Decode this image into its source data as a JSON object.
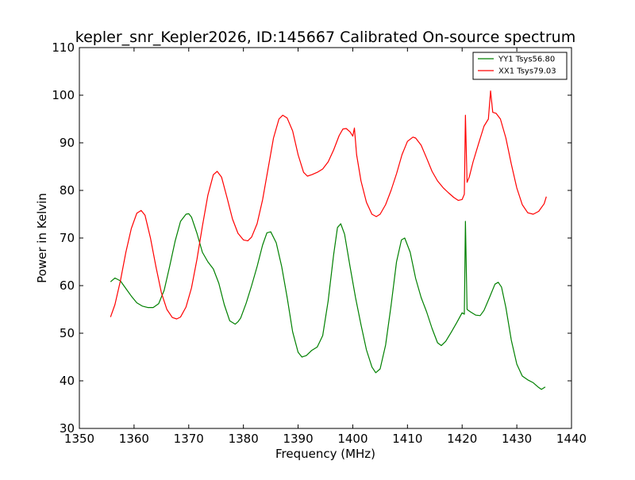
{
  "chart_data": {
    "type": "line",
    "title": "kepler_snr_Kepler2026, ID:145667 Calibrated On-source spectrum",
    "xlabel": "Frequency (MHz)",
    "ylabel": "Power in Kelvin",
    "xlim": [
      1350,
      1440
    ],
    "ylim": [
      30,
      110
    ],
    "xticks": [
      1350,
      1360,
      1370,
      1380,
      1390,
      1400,
      1410,
      1420,
      1430,
      1440
    ],
    "yticks": [
      30,
      40,
      50,
      60,
      70,
      80,
      90,
      100,
      110
    ],
    "grid": false,
    "legend": "top-right",
    "series": [
      {
        "name": "YY1 Tsys56.80",
        "color": "#008000",
        "x": [
          1355.7,
          1356.5,
          1357.5,
          1358.5,
          1359.5,
          1360.5,
          1361.5,
          1362.5,
          1363.5,
          1364.5,
          1365.5,
          1366.5,
          1367.5,
          1368.5,
          1369.5,
          1370.0,
          1370.5,
          1371.5,
          1372.5,
          1373.5,
          1374.5,
          1375.5,
          1376.5,
          1377.5,
          1378.5,
          1379.0,
          1379.5,
          1380.5,
          1381.5,
          1382.5,
          1383.5,
          1384.3,
          1385.0,
          1386.0,
          1387.0,
          1388.0,
          1389.0,
          1390.0,
          1390.7,
          1391.5,
          1392.5,
          1393.5,
          1394.5,
          1395.5,
          1396.5,
          1397.2,
          1397.8,
          1398.5,
          1399.5,
          1400.5,
          1401.5,
          1402.5,
          1403.5,
          1404.2,
          1405.0,
          1406.0,
          1407.0,
          1408.0,
          1408.9,
          1409.5,
          1410.5,
          1411.5,
          1412.5,
          1413.5,
          1414.5,
          1415.5,
          1416.2,
          1417.0,
          1418.0,
          1419.0,
          1420.0,
          1420.4,
          1420.6,
          1420.9,
          1421.5,
          1422.5,
          1423.3,
          1424.0,
          1425.0,
          1426.0,
          1426.6,
          1427.2,
          1428.0,
          1429.0,
          1430.0,
          1431.0,
          1432.0,
          1433.0,
          1434.0,
          1434.5,
          1435.2
        ],
        "values": [
          60.8,
          61.6,
          61.0,
          59.4,
          57.8,
          56.4,
          55.7,
          55.4,
          55.4,
          56.2,
          59.0,
          64.0,
          69.3,
          73.5,
          75.0,
          75.1,
          74.4,
          71.0,
          67.0,
          65.0,
          63.5,
          60.5,
          56.0,
          52.6,
          51.9,
          52.4,
          53.2,
          56.3,
          60.0,
          64.0,
          68.5,
          71.1,
          71.3,
          69.0,
          64.0,
          57.5,
          50.3,
          46.0,
          45.0,
          45.3,
          46.4,
          47.1,
          49.5,
          56.8,
          66.5,
          72.2,
          73.0,
          70.8,
          64.0,
          57.5,
          51.8,
          46.5,
          42.9,
          41.7,
          42.5,
          47.5,
          55.8,
          65.0,
          69.6,
          70.0,
          67.0,
          61.5,
          57.5,
          54.5,
          51.0,
          48.0,
          47.4,
          48.3,
          50.2,
          52.2,
          54.3,
          54.0,
          73.5,
          55.0,
          54.5,
          53.8,
          53.7,
          54.8,
          57.5,
          60.3,
          60.7,
          59.7,
          55.4,
          48.5,
          43.5,
          41.0,
          40.2,
          39.6,
          38.6,
          38.2,
          38.7
        ]
      },
      {
        "name": "XX1 Tsys79.03",
        "color": "#ff0000",
        "x": [
          1355.7,
          1356.5,
          1357.5,
          1358.5,
          1359.5,
          1360.5,
          1361.3,
          1362.0,
          1363.0,
          1364.0,
          1365.0,
          1366.0,
          1367.0,
          1367.8,
          1368.5,
          1369.5,
          1370.5,
          1371.5,
          1372.5,
          1373.5,
          1374.5,
          1375.2,
          1376.0,
          1377.0,
          1378.0,
          1379.0,
          1380.0,
          1380.8,
          1381.5,
          1382.5,
          1383.5,
          1384.5,
          1385.5,
          1386.5,
          1387.2,
          1388.0,
          1389.0,
          1390.0,
          1391.0,
          1391.7,
          1392.5,
          1393.5,
          1394.5,
          1395.5,
          1396.5,
          1397.5,
          1398.2,
          1398.8,
          1399.5,
          1400.0,
          1400.3,
          1400.7,
          1401.5,
          1402.5,
          1403.5,
          1404.3,
          1405.0,
          1406.0,
          1407.0,
          1408.0,
          1409.0,
          1410.0,
          1411.0,
          1411.5,
          1412.5,
          1413.5,
          1414.5,
          1415.5,
          1416.5,
          1417.5,
          1418.5,
          1419.3,
          1420.0,
          1420.4,
          1420.6,
          1420.9,
          1421.3,
          1422.0,
          1423.0,
          1424.0,
          1424.8,
          1425.2,
          1425.6,
          1426.2,
          1427.0,
          1428.0,
          1429.0,
          1430.0,
          1431.0,
          1432.0,
          1433.0,
          1434.0,
          1435.0,
          1435.4
        ],
        "values": [
          53.4,
          56.0,
          61.0,
          67.0,
          72.0,
          75.2,
          75.8,
          74.8,
          70.0,
          64.0,
          58.5,
          55.0,
          53.3,
          53.0,
          53.4,
          55.5,
          59.5,
          65.5,
          72.5,
          79.0,
          83.3,
          84.0,
          82.8,
          78.5,
          74.0,
          71.0,
          69.6,
          69.4,
          70.2,
          73.0,
          78.0,
          84.5,
          91.0,
          95.0,
          95.8,
          95.2,
          92.5,
          87.5,
          83.8,
          83.0,
          83.3,
          83.8,
          84.5,
          86.0,
          88.5,
          91.5,
          92.9,
          93.0,
          92.3,
          91.4,
          93.1,
          87.5,
          82.0,
          77.5,
          75.0,
          74.5,
          75.0,
          77.0,
          80.0,
          83.5,
          87.5,
          90.3,
          91.2,
          91.0,
          89.5,
          86.8,
          84.0,
          82.0,
          80.6,
          79.5,
          78.5,
          77.9,
          78.1,
          79.2,
          95.8,
          81.7,
          82.8,
          86.0,
          89.8,
          93.5,
          95.0,
          100.9,
          96.4,
          96.2,
          95.0,
          91.0,
          85.5,
          80.5,
          77.0,
          75.3,
          75.0,
          75.6,
          77.2,
          78.7
        ]
      }
    ]
  }
}
